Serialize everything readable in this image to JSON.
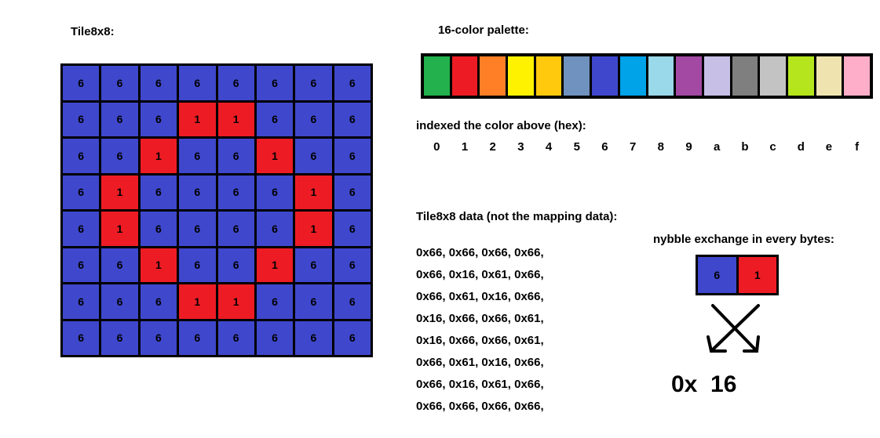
{
  "labels": {
    "tile_title": "Tile8x8:",
    "palette_title": "16-color palette:",
    "index_title": "indexed the color above (hex):",
    "data_title": "Tile8x8 data (not the mapping data):",
    "swap_title": "nybble exchange in every bytes:"
  },
  "colors": {
    "6": "#3f48cc",
    "1": "#ed1c24"
  },
  "tile": [
    [
      "6",
      "6",
      "6",
      "6",
      "6",
      "6",
      "6",
      "6"
    ],
    [
      "6",
      "6",
      "6",
      "1",
      "1",
      "6",
      "6",
      "6"
    ],
    [
      "6",
      "6",
      "1",
      "6",
      "6",
      "1",
      "6",
      "6"
    ],
    [
      "6",
      "1",
      "6",
      "6",
      "6",
      "6",
      "1",
      "6"
    ],
    [
      "6",
      "1",
      "6",
      "6",
      "6",
      "6",
      "1",
      "6"
    ],
    [
      "6",
      "6",
      "1",
      "6",
      "6",
      "1",
      "6",
      "6"
    ],
    [
      "6",
      "6",
      "6",
      "1",
      "1",
      "6",
      "6",
      "6"
    ],
    [
      "6",
      "6",
      "6",
      "6",
      "6",
      "6",
      "6",
      "6"
    ]
  ],
  "palette": [
    "#22b14c",
    "#ed1c24",
    "#ff7f27",
    "#fff200",
    "#ffc90e",
    "#7092be",
    "#3f48cc",
    "#00a2e8",
    "#99d9ea",
    "#a349a4",
    "#c8bfe7",
    "#7f7f7f",
    "#c3c3c3",
    "#b5e61d",
    "#efe4b0",
    "#ffaec9"
  ],
  "hex_indices": [
    "0",
    "1",
    "2",
    "3",
    "4",
    "5",
    "6",
    "7",
    "8",
    "9",
    "a",
    "b",
    "c",
    "d",
    "e",
    "f"
  ],
  "data_lines": [
    "0x66, 0x66, 0x66, 0x66,",
    "0x66, 0x16, 0x61, 0x66,",
    "0x66, 0x61, 0x16, 0x66,",
    "0x16, 0x66, 0x66, 0x61,",
    "0x16, 0x66, 0x66, 0x61,",
    "0x66, 0x61, 0x16, 0x66,",
    "0x66, 0x16, 0x61, 0x66,",
    "0x66, 0x66, 0x66, 0x66,"
  ],
  "swap": {
    "left": "6",
    "right": "1",
    "result": "0x  16"
  }
}
